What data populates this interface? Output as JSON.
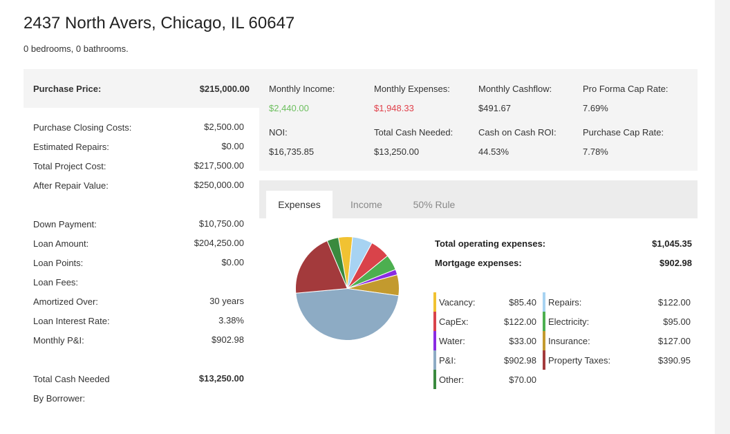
{
  "property": {
    "address": "2437 North Avers, Chicago, IL 60647",
    "details": "0 bedrooms, 0 bathrooms."
  },
  "left": {
    "purchase_price": {
      "label": "Purchase Price:",
      "value": "$215,000.00"
    },
    "closing_costs": {
      "label": "Purchase Closing Costs:",
      "value": "$2,500.00"
    },
    "repairs": {
      "label": "Estimated Repairs:",
      "value": "$0.00"
    },
    "project_cost": {
      "label": "Total Project Cost:",
      "value": "$217,500.00"
    },
    "arv": {
      "label": "After Repair Value:",
      "value": "$250,000.00"
    },
    "down_payment": {
      "label": "Down Payment:",
      "value": "$10,750.00"
    },
    "loan_amount": {
      "label": "Loan Amount:",
      "value": "$204,250.00"
    },
    "loan_points": {
      "label": "Loan Points:",
      "value": "$0.00"
    },
    "loan_fees": {
      "label": "Loan Fees:",
      "value": ""
    },
    "amortized": {
      "label": "Amortized Over:",
      "value": "30 years"
    },
    "interest": {
      "label": "Loan Interest Rate:",
      "value": "3.38%"
    },
    "pi": {
      "label": "Monthly P&I:",
      "value": "$902.98"
    },
    "cash_needed": {
      "label": "Total Cash Needed",
      "value": "$13,250.00"
    },
    "by_borrower": {
      "label": "By Borrower:"
    }
  },
  "summary": {
    "monthly_income": {
      "label": "Monthly Income:",
      "value": "$2,440.00"
    },
    "monthly_expenses": {
      "label": "Monthly Expenses:",
      "value": "$1,948.33"
    },
    "monthly_cashflow": {
      "label": "Monthly Cashflow:",
      "value": "$491.67"
    },
    "pro_forma_cap": {
      "label": "Pro Forma Cap Rate:",
      "value": "7.69%"
    },
    "noi": {
      "label": "NOI:",
      "value": "$16,735.85"
    },
    "total_cash": {
      "label": "Total Cash Needed:",
      "value": "$13,250.00"
    },
    "coc": {
      "label": "Cash on Cash ROI:",
      "value": "44.53%"
    },
    "purchase_cap": {
      "label": "Purchase Cap Rate:",
      "value": "7.78%"
    }
  },
  "tabs": {
    "expenses": "Expenses",
    "income": "Income",
    "rule50": "50% Rule"
  },
  "totals": {
    "operating": {
      "label": "Total operating expenses:",
      "value": "$1,045.35"
    },
    "mortgage": {
      "label": "Mortgage expenses:",
      "value": "$902.98"
    }
  },
  "legend": {
    "vacancy": {
      "label": "Vacancy:",
      "value": "$85.40"
    },
    "capex": {
      "label": "CapEx:",
      "value": "$122.00"
    },
    "water": {
      "label": "Water:",
      "value": "$33.00"
    },
    "pi": {
      "label": "P&I:",
      "value": "$902.98"
    },
    "other": {
      "label": "Other:",
      "value": "$70.00"
    },
    "repairs": {
      "label": "Repairs:",
      "value": "$122.00"
    },
    "electricity": {
      "label": "Electricity:",
      "value": "$95.00"
    },
    "insurance": {
      "label": "Insurance:",
      "value": "$127.00"
    },
    "taxes": {
      "label": "Property Taxes:",
      "value": "$390.95"
    }
  },
  "chart_data": {
    "type": "pie",
    "start_angle_deg": -10,
    "slices": [
      {
        "name": "Vacancy",
        "value": 85.4,
        "color": "#f1c232"
      },
      {
        "name": "Repairs",
        "value": 122.0,
        "color": "#a7d3f2"
      },
      {
        "name": "CapEx",
        "value": 122.0,
        "color": "#d9434a"
      },
      {
        "name": "Electricity",
        "value": 95.0,
        "color": "#4caf50"
      },
      {
        "name": "Water",
        "value": 33.0,
        "color": "#8a2be2"
      },
      {
        "name": "Insurance",
        "value": 127.0,
        "color": "#c39a2e"
      },
      {
        "name": "P&I",
        "value": 902.98,
        "color": "#8dabc4"
      },
      {
        "name": "Property Taxes",
        "value": 390.95,
        "color": "#a33a3c"
      },
      {
        "name": "Other",
        "value": 70.0,
        "color": "#3a8a3e"
      }
    ]
  }
}
